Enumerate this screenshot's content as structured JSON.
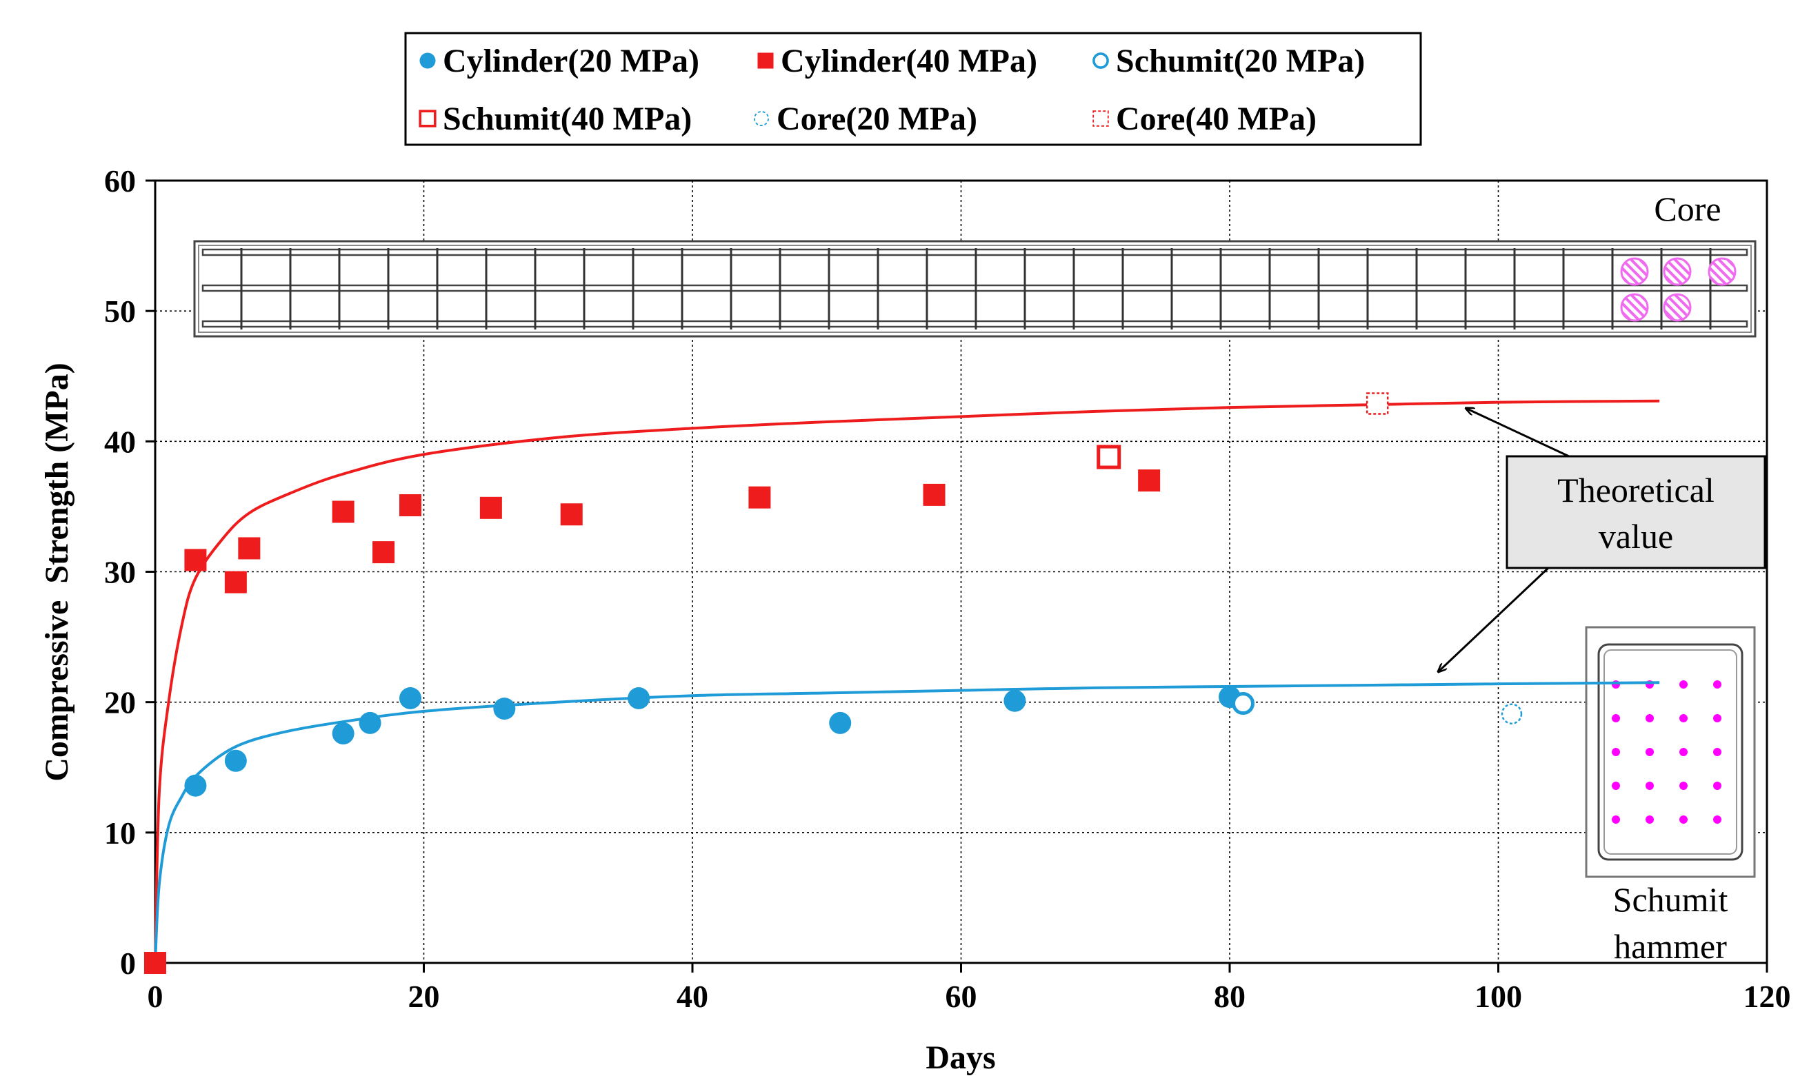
{
  "chart_data": {
    "type": "scatter",
    "xlabel": "Days",
    "ylabel": "Compressive  Strength (MPa)",
    "xlim": [
      0,
      120
    ],
    "ylim": [
      0,
      60
    ],
    "xticks": [
      0,
      20,
      40,
      60,
      80,
      100,
      120
    ],
    "yticks": [
      0,
      10,
      20,
      30,
      40,
      50,
      60
    ],
    "grid": true,
    "legend_position": "top",
    "series": [
      {
        "name": "Cylinder(20 MPa)",
        "marker": "filled-circle",
        "color": "#1f9bd7",
        "x": [
          0,
          3,
          6,
          14,
          16,
          19,
          26,
          36,
          51,
          64,
          80
        ],
        "y": [
          0,
          13.6,
          15.5,
          17.6,
          18.4,
          20.3,
          19.5,
          20.3,
          18.4,
          20.1,
          20.4
        ]
      },
      {
        "name": "Cylinder(40 MPa)",
        "marker": "filled-square",
        "color": "#ee1c1c",
        "x": [
          0,
          3,
          6,
          7,
          14,
          17,
          19,
          25,
          31,
          45,
          58,
          74
        ],
        "y": [
          0,
          30.9,
          29.2,
          31.8,
          34.6,
          31.5,
          35.1,
          34.9,
          34.4,
          35.7,
          35.9,
          37.0
        ]
      },
      {
        "name": "Schumit(20 MPa)",
        "marker": "open-circle-thick",
        "color": "#1f9bd7",
        "x": [
          81
        ],
        "y": [
          19.9
        ]
      },
      {
        "name": "Schumit(40 MPa)",
        "marker": "open-square-thick",
        "color": "#ee1c1c",
        "x": [
          71
        ],
        "y": [
          38.8
        ]
      },
      {
        "name": "Core(20 MPa)",
        "marker": "open-circle-dashed",
        "color": "#1f9bd7",
        "x": [
          101
        ],
        "y": [
          19.1
        ]
      },
      {
        "name": "Core(40 MPa)",
        "marker": "open-square-dashed",
        "color": "#ee1c1c",
        "x": [
          91
        ],
        "y": [
          42.9
        ]
      }
    ],
    "theoretical_curves": [
      {
        "name": "Theoretical 40 MPa",
        "color": "#ee1c1c",
        "x": [
          0,
          0.3,
          1,
          2,
          3,
          5,
          7,
          10,
          14,
          20,
          30,
          40,
          50,
          60,
          70,
          80,
          90,
          100,
          112
        ],
        "y": [
          0,
          13,
          20,
          26,
          29.5,
          32.5,
          34.5,
          36,
          37.5,
          39,
          40.3,
          41,
          41.5,
          41.9,
          42.3,
          42.6,
          42.8,
          43,
          43.1
        ]
      },
      {
        "name": "Theoretical 20 MPa",
        "color": "#1f9bd7",
        "x": [
          0,
          0.3,
          1,
          2,
          3,
          5,
          7,
          10,
          14,
          20,
          30,
          40,
          50,
          60,
          70,
          80,
          90,
          100,
          112
        ],
        "y": [
          0,
          6,
          10.5,
          12.8,
          14.3,
          16,
          17,
          17.8,
          18.5,
          19.3,
          20,
          20.5,
          20.7,
          20.9,
          21.1,
          21.2,
          21.3,
          21.4,
          21.5
        ]
      }
    ],
    "annotations": {
      "theoretical_label_line1": "Theoretical",
      "theoretical_label_line2": "value",
      "core_label": "Core",
      "schumit_label_line1": "Schumit",
      "schumit_label_line2": "hammer"
    }
  },
  "colors": {
    "blue": "#1f9bd7",
    "red": "#ee1c1c",
    "magenta": "#ff00ff",
    "hatch": "#f06af0",
    "annotation_box_fill": "#e6e6e6"
  }
}
